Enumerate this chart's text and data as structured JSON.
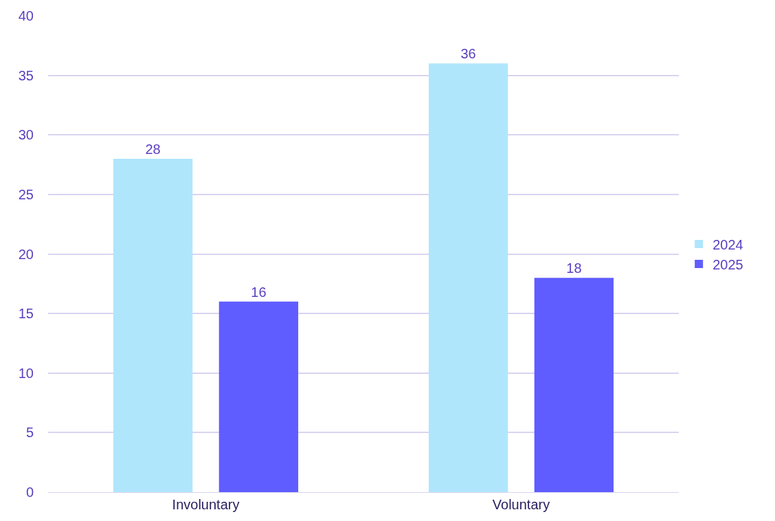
{
  "chart_data": {
    "type": "bar",
    "categories": [
      "Involuntary",
      "Voluntary"
    ],
    "series": [
      {
        "name": "2024",
        "color": "#b0e6fc",
        "values": [
          28,
          36
        ]
      },
      {
        "name": "2025",
        "color": "#5f5dff",
        "values": [
          16,
          18
        ]
      }
    ],
    "ylim": [
      0,
      40
    ],
    "yticks": [
      0,
      5,
      10,
      15,
      20,
      25,
      30,
      35,
      40
    ],
    "grid": "y",
    "legend": "right",
    "data_labels": true
  }
}
